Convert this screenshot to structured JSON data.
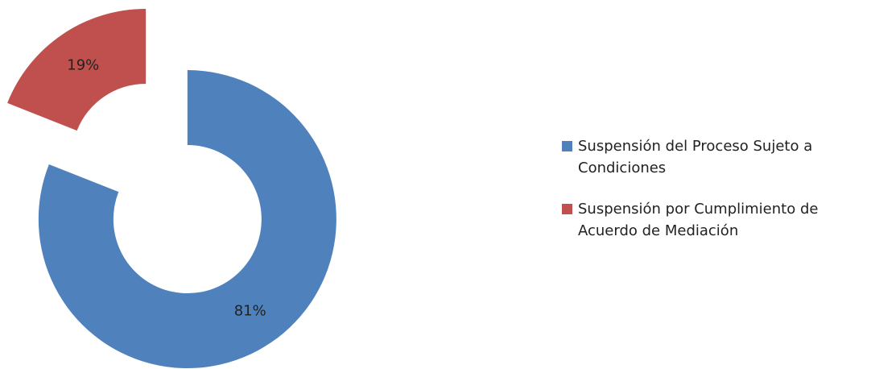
{
  "chart_data": {
    "type": "donut",
    "categories": [
      "Suspensión del Proceso Sujeto a Condiciones",
      "Suspensión por Cumplimiento de Acuerdo de Mediación"
    ],
    "values": [
      81,
      19
    ],
    "value_labels": [
      "81%",
      "19%"
    ],
    "colors": [
      "#4f81bd",
      "#c0504d"
    ],
    "exploded": true,
    "legend": "right"
  }
}
